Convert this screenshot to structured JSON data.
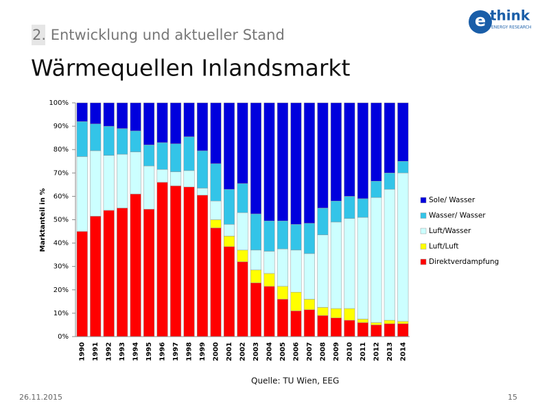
{
  "slide": {
    "section": "2. Entwicklung und aktueller Stand",
    "heading": "Wärmequellen Inlandsmarkt",
    "source": "Quelle: TU Wien, EEG",
    "date": "26.11.2015",
    "page": "15",
    "logo": {
      "mark": "e",
      "name": "think",
      "tagline": "ENERGY RESEARCH"
    }
  },
  "chart_data": {
    "type": "stacked_bar",
    "y_label": "Marktanteil in %",
    "categories": [
      "1990",
      "1991",
      "1992",
      "1993",
      "1994",
      "1995",
      "1996",
      "1997",
      "1998",
      "1999",
      "2000",
      "2001",
      "2002",
      "2003",
      "2004",
      "2005",
      "2006",
      "2007",
      "2008",
      "2009",
      "2010",
      "2011",
      "2012",
      "2013",
      "2014"
    ],
    "series": [
      {
        "name": "Direktverdampfung",
        "color": "#ff0000",
        "values": [
          45,
          51.5,
          54,
          55,
          61,
          54.5,
          66,
          64.5,
          64,
          60.5,
          46.5,
          38.5,
          32,
          23,
          21.5,
          16,
          11,
          11.5,
          9,
          8,
          7,
          6,
          5,
          5.5,
          5.5
        ]
      },
      {
        "name": "Luft/Luft",
        "color": "#ffff00",
        "values": [
          0,
          0,
          0,
          0,
          0,
          0,
          0,
          0,
          0,
          0,
          3.5,
          4.5,
          5,
          5.5,
          5.5,
          5.5,
          8,
          4.5,
          3.5,
          4,
          5,
          1.5,
          1,
          1.5,
          1
        ]
      },
      {
        "name": "Luft/Wasser",
        "color": "#ccffff",
        "values": [
          32,
          28,
          23.5,
          23,
          18,
          18.5,
          5.5,
          6,
          7,
          3,
          8,
          5,
          16,
          8.5,
          9.5,
          16,
          18,
          19.5,
          31,
          37,
          38.5,
          43.5,
          53.5,
          56,
          63.5
        ]
      },
      {
        "name": "Wasser/ Wasser",
        "color": "#33c4e8",
        "values": [
          15,
          11.5,
          12.5,
          11,
          9,
          9,
          11.5,
          12,
          14.5,
          16,
          16,
          15,
          12.5,
          15.5,
          13,
          12,
          11,
          13,
          11.5,
          9,
          9.5,
          8,
          7,
          7,
          5
        ]
      },
      {
        "name": "Sole/ Wasser",
        "color": "#0000dd",
        "values": [
          8,
          9,
          10,
          11,
          12,
          18,
          17,
          17.5,
          14.5,
          20.5,
          26,
          37,
          34.5,
          47.5,
          50.5,
          50.5,
          52,
          51.5,
          45,
          42,
          40,
          41,
          33.5,
          30,
          25
        ]
      }
    ],
    "ylim": [
      0,
      100
    ],
    "yticks": [
      {
        "value": 0,
        "label": "0%"
      },
      {
        "value": 10,
        "label": "10%"
      },
      {
        "value": 20,
        "label": "20%"
      },
      {
        "value": 30,
        "label": "30%"
      },
      {
        "value": 40,
        "label": "40%"
      },
      {
        "value": 50,
        "label": "50%"
      },
      {
        "value": 60,
        "label": "60%"
      },
      {
        "value": 70,
        "label": "70%"
      },
      {
        "value": 80,
        "label": "80%"
      },
      {
        "value": 90,
        "label": "90%"
      },
      {
        "value": 100,
        "label": "100%"
      }
    ],
    "grid": false,
    "legend": "right"
  }
}
